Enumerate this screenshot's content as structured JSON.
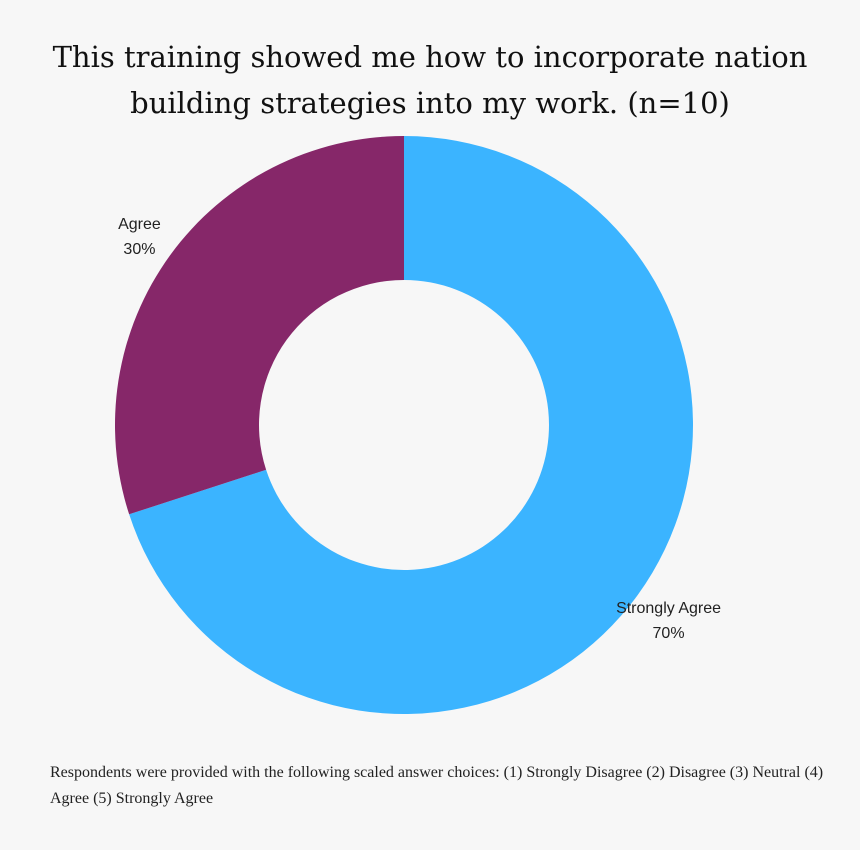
{
  "chart_data": {
    "type": "pie",
    "variant": "donut",
    "title": "This training showed me how to incorporate nation building strategies into my work. (n=10)",
    "slices": [
      {
        "label": "Strongly Agree",
        "value": 70,
        "value_label": "70%",
        "color": "#3bb4ff"
      },
      {
        "label": "Agree",
        "value": 30,
        "value_label": "30%",
        "color": "#862769"
      }
    ],
    "legend": false
  },
  "footnote": "Respondents were provided with the following scaled answer choices: (1) Strongly Disagree (2) Disagree (3) Neutral (4) Agree (5) Strongly Agree"
}
